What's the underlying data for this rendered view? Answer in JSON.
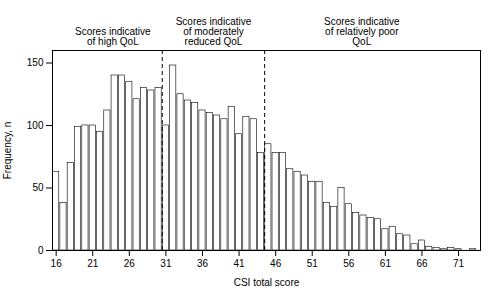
{
  "chart_data": {
    "type": "bar",
    "x": [
      16,
      17,
      18,
      19,
      20,
      21,
      22,
      23,
      24,
      25,
      26,
      27,
      28,
      29,
      30,
      31,
      32,
      33,
      34,
      35,
      36,
      37,
      38,
      39,
      40,
      41,
      42,
      43,
      44,
      45,
      46,
      47,
      48,
      49,
      50,
      51,
      52,
      53,
      54,
      55,
      56,
      57,
      58,
      59,
      60,
      61,
      62,
      63,
      64,
      65,
      66,
      67,
      68,
      69,
      70,
      71,
      72,
      73
    ],
    "values": [
      63,
      38,
      70,
      99,
      100,
      100,
      95,
      112,
      140,
      140,
      135,
      121,
      130,
      128,
      130,
      100,
      148,
      125,
      120,
      118,
      112,
      110,
      108,
      105,
      115,
      93,
      107,
      105,
      78,
      85,
      78,
      78,
      65,
      63,
      60,
      55,
      55,
      38,
      35,
      50,
      37,
      30,
      28,
      26,
      25,
      17,
      19,
      13,
      12,
      5,
      8,
      3,
      2,
      1,
      2,
      1,
      0,
      1
    ],
    "color": "white",
    "xlabel": "CSI total score",
    "ylabel": "Frequency, n",
    "xlim": [
      15.5,
      74
    ],
    "ylim": [
      0,
      160
    ],
    "xticks": [
      16,
      21,
      26,
      31,
      36,
      41,
      46,
      51,
      56,
      61,
      66,
      71
    ],
    "yticks": [
      0,
      50,
      100,
      150
    ],
    "grid": false,
    "vlines": [
      30.5,
      44.5
    ],
    "annotations": [
      "Scores indicative\nof high QoL",
      "Scores indicative\nof moderately\nreduced QoL",
      "Scores indicative\nof relatively poor\nQoL"
    ]
  }
}
